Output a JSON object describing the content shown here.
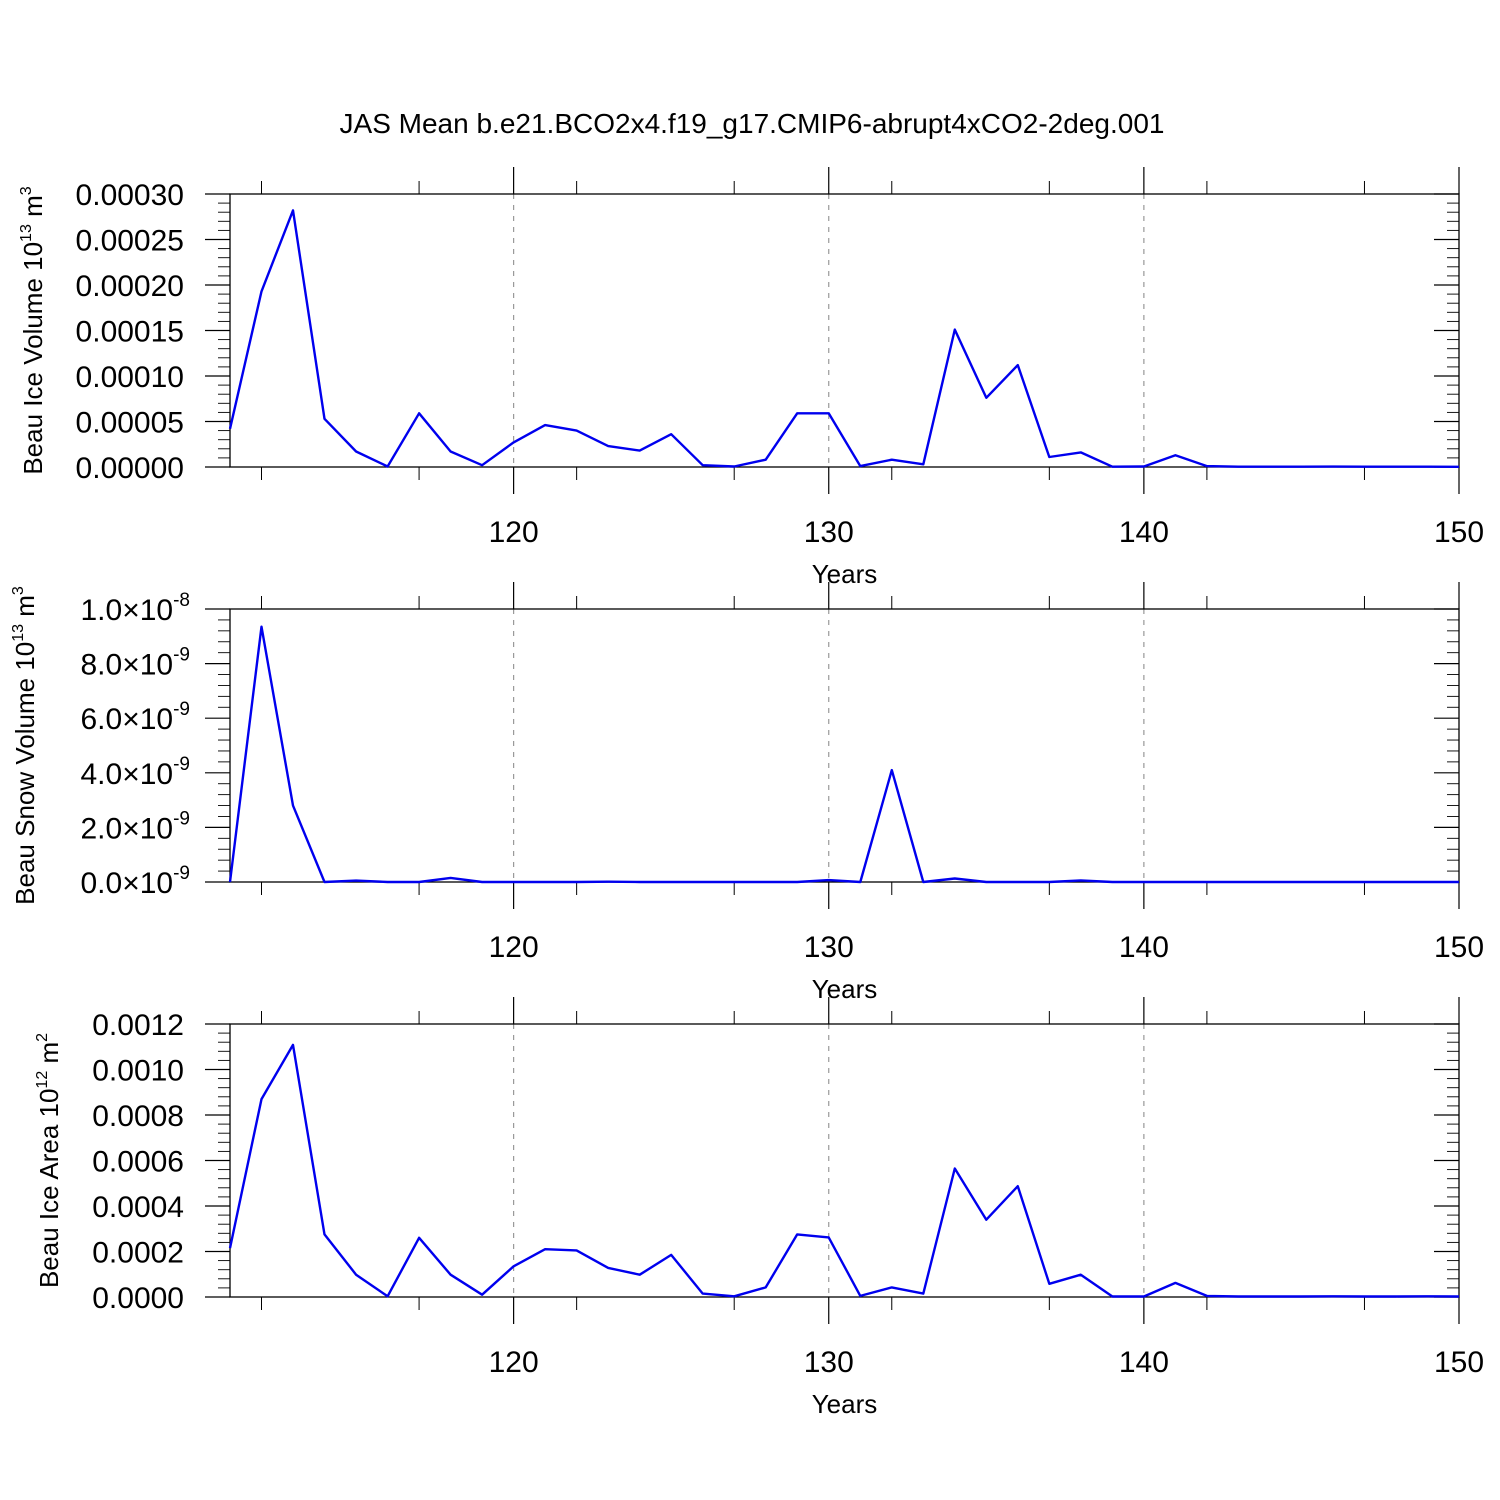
{
  "title": "JAS Mean b.e21.BCO2x4.f19_g17.CMIP6-abrupt4xCO2-2deg.001",
  "line_color": "#0000ee",
  "grid_color": "#999999",
  "chart_data": [
    {
      "type": "line",
      "ylabel": {
        "text": "Beau Ice Volume 10",
        "sup": "13",
        "unit": " m",
        "unit_sup": "3"
      },
      "xlabel": "Years",
      "xlim": [
        111,
        150
      ],
      "ylim": [
        0,
        0.0003
      ],
      "xticks": [
        "120",
        "130",
        "140",
        "150"
      ],
      "yticks": [
        "0.00000",
        "0.00005",
        "0.00010",
        "0.00015",
        "0.00020",
        "0.00025",
        "0.00030"
      ],
      "grid": "x dashed at major ticks",
      "x": [
        111,
        112,
        113,
        114,
        115,
        116,
        117,
        118,
        119,
        120,
        121,
        122,
        123,
        124,
        125,
        126,
        127,
        128,
        129,
        130,
        131,
        132,
        133,
        134,
        135,
        136,
        137,
        138,
        139,
        140,
        141,
        142,
        143,
        144,
        145,
        146,
        147,
        148,
        149,
        150
      ],
      "values": [
        4.2e-05,
        0.000193,
        0.000282,
        5.3e-05,
        1.7e-05,
        5e-07,
        5.9e-05,
        1.7e-05,
        2e-06,
        2.7e-05,
        4.6e-05,
        4e-05,
        2.3e-05,
        1.8e-05,
        3.6e-05,
        2e-06,
        5e-07,
        8e-06,
        5.9e-05,
        5.9e-05,
        1e-06,
        8e-06,
        3e-06,
        0.000151,
        7.6e-05,
        0.000112,
        1.1e-05,
        1.6e-05,
        3e-07,
        5e-07,
        1.3e-05,
        1e-06,
        3e-07,
        3e-07,
        3e-07,
        4e-07,
        3e-07,
        3e-07,
        3e-07,
        2e-07
      ]
    },
    {
      "type": "line",
      "ylabel": {
        "text": "Beau Snow Volume 10",
        "sup": "13",
        "unit": " m",
        "unit_sup": "3"
      },
      "xlabel": "Years",
      "xlim": [
        111,
        150
      ],
      "ylim": [
        0,
        1e-08
      ],
      "xticks": [
        "120",
        "130",
        "140",
        "150"
      ],
      "yticks": [
        {
          "mant": "0.0",
          "exp": "-9"
        },
        {
          "mant": "2.0",
          "exp": "-9"
        },
        {
          "mant": "4.0",
          "exp": "-9"
        },
        {
          "mant": "6.0",
          "exp": "-9"
        },
        {
          "mant": "8.0",
          "exp": "-9"
        },
        {
          "mant": "1.0",
          "exp": "-8"
        }
      ],
      "times": "×10",
      "grid": "x dashed at major ticks",
      "x": [
        111,
        112,
        113,
        114,
        115,
        116,
        117,
        118,
        119,
        120,
        121,
        122,
        123,
        124,
        125,
        126,
        127,
        128,
        129,
        130,
        131,
        132,
        133,
        134,
        135,
        136,
        137,
        138,
        139,
        140,
        141,
        142,
        143,
        144,
        145,
        146,
        147,
        148,
        149,
        150
      ],
      "values": [
        0,
        9.35e-09,
        2.8e-09,
        0,
        5e-11,
        0,
        0,
        1.5e-10,
        0,
        0,
        0,
        0,
        1e-11,
        0,
        0,
        0,
        0,
        0,
        0,
        7e-11,
        0,
        4.1e-09,
        0,
        1.3e-10,
        0,
        0,
        0,
        6e-11,
        0,
        0,
        0,
        0,
        0,
        0,
        0,
        0,
        0,
        0,
        0,
        0
      ]
    },
    {
      "type": "line",
      "ylabel": {
        "text": "Beau Ice Area 10",
        "sup": "12",
        "unit": " m",
        "unit_sup": "2"
      },
      "xlabel": "Years",
      "xlim": [
        111,
        150
      ],
      "ylim": [
        0,
        0.0012
      ],
      "xticks": [
        "120",
        "130",
        "140",
        "150"
      ],
      "yticks": [
        "0.0000",
        "0.0002",
        "0.0004",
        "0.0006",
        "0.0008",
        "0.0010",
        "0.0012"
      ],
      "grid": "x dashed at major ticks",
      "x": [
        111,
        112,
        113,
        114,
        115,
        116,
        117,
        118,
        119,
        120,
        121,
        122,
        123,
        124,
        125,
        126,
        127,
        128,
        129,
        130,
        131,
        132,
        133,
        134,
        135,
        136,
        137,
        138,
        139,
        140,
        141,
        142,
        143,
        144,
        145,
        146,
        147,
        148,
        149,
        150
      ],
      "values": [
        0.000215,
        0.00087,
        0.001108,
        0.000275,
        9.8e-05,
        3e-06,
        0.00026,
        9.8e-05,
        1e-05,
        0.000135,
        0.00021,
        0.000205,
        0.000128,
        9.8e-05,
        0.000185,
        1.5e-05,
        3e-06,
        4.2e-05,
        0.000275,
        0.000262,
        5e-06,
        4.2e-05,
        1.5e-05,
        0.000565,
        0.00034,
        0.000487,
        5.8e-05,
        9.8e-05,
        2e-06,
        2e-06,
        6.2e-05,
        5e-06,
        2e-06,
        2e-06,
        2e-06,
        3e-06,
        2e-06,
        2e-06,
        3e-06,
        2e-06
      ]
    }
  ]
}
